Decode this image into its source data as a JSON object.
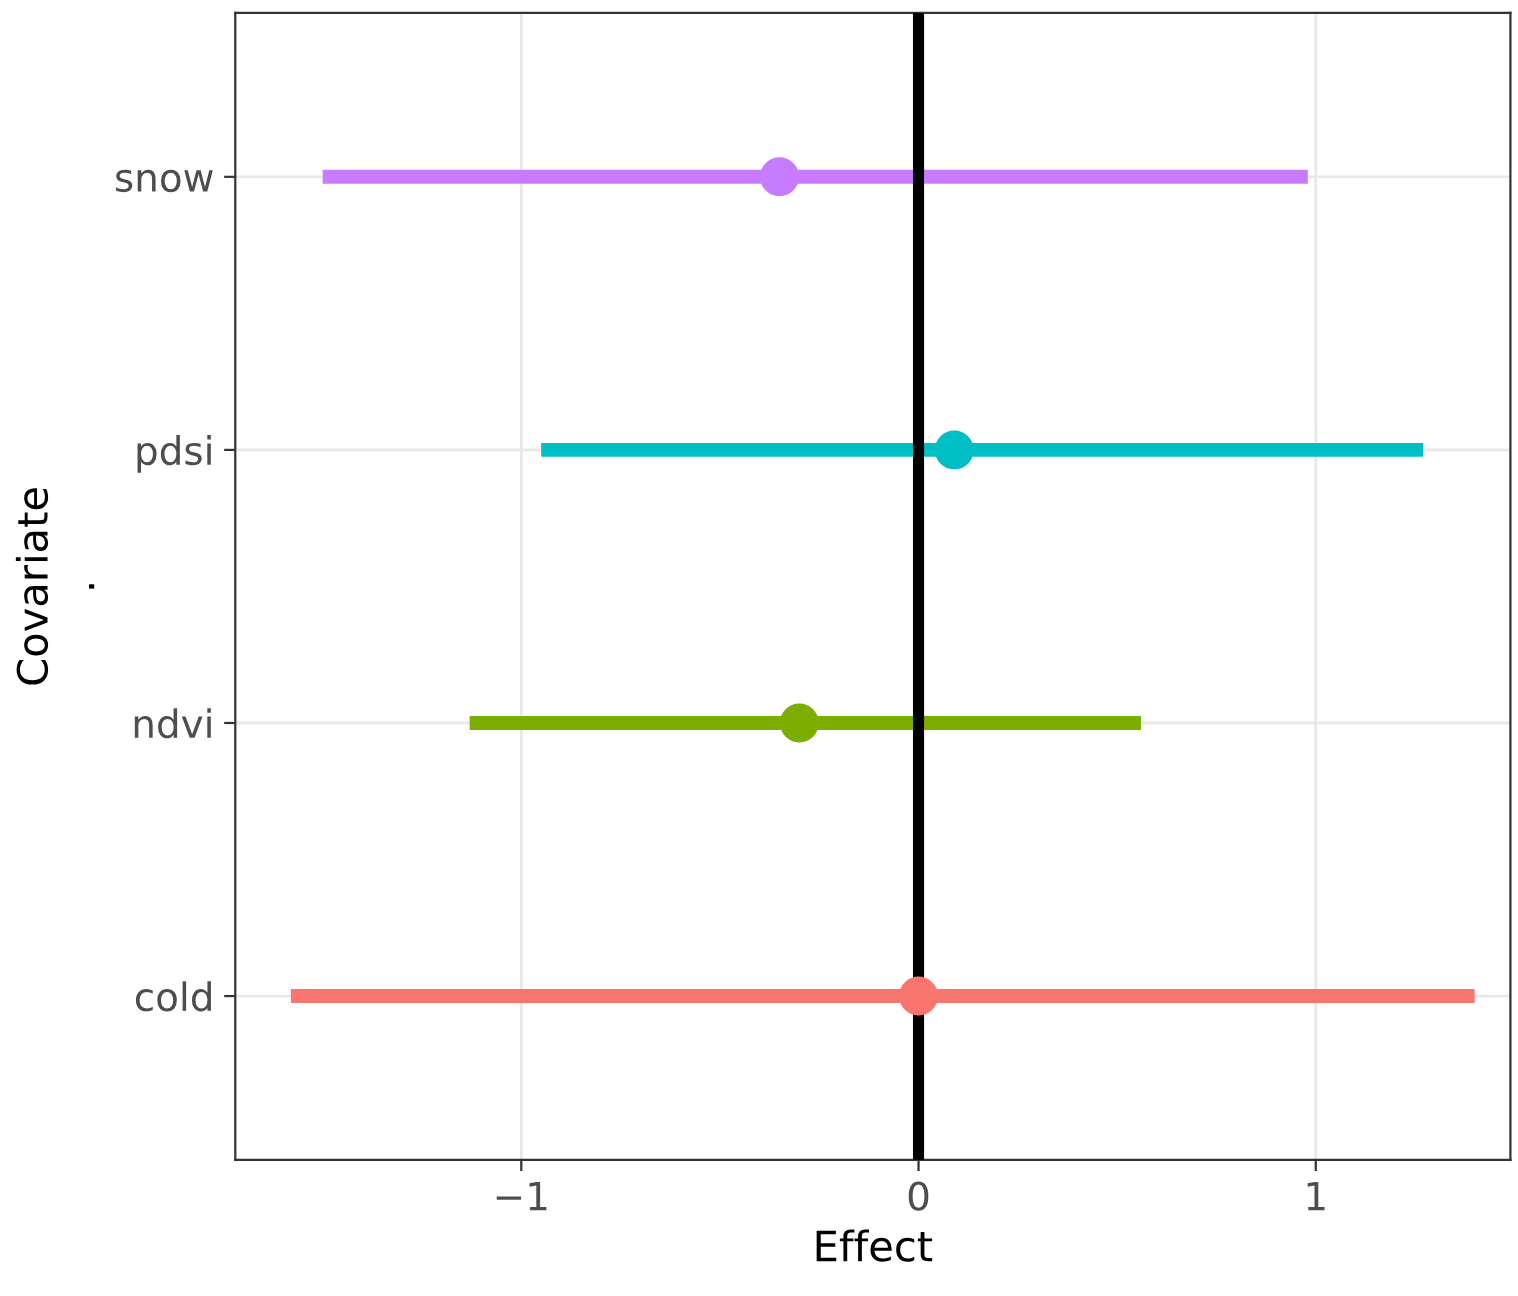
{
  "chart_data": {
    "type": "scatter",
    "orientation": "horizontal",
    "xlabel": "Effect",
    "ylabel": "Covariate\n.",
    "categories": [
      "snow",
      "pdsi",
      "ndvi",
      "cold"
    ],
    "values": [
      -0.35,
      0.09,
      -0.3,
      0.0
    ],
    "errors": [
      [
        -1.5,
        0.98
      ],
      [
        -0.95,
        1.27
      ],
      [
        -1.13,
        0.56
      ],
      [
        -1.58,
        1.4
      ]
    ],
    "colors": [
      "#c77cff",
      "#00bfc4",
      "#7cae00",
      "#f8766d"
    ],
    "xlim": [
      -1.72,
      1.49
    ],
    "xticks": [
      {
        "value": -1,
        "label": "−1"
      },
      0,
      1
    ],
    "ref_lines": [
      {
        "axis": "x",
        "value": 0,
        "color": "#000000"
      }
    ],
    "grid": true,
    "marker": "circle"
  }
}
